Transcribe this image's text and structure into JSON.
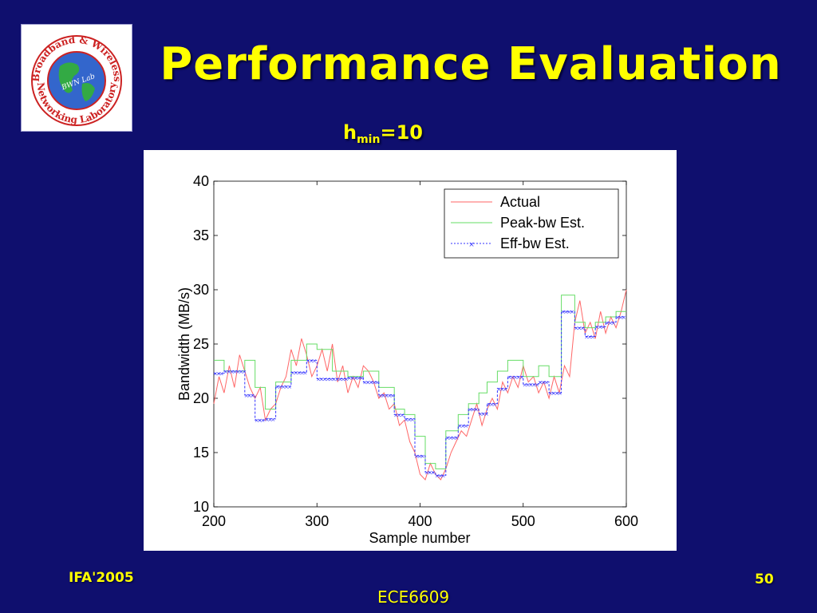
{
  "slide": {
    "title": "Performance Evaluation",
    "subtitle_main": "h",
    "subtitle_sub": "min",
    "subtitle_rest": "=10",
    "footer_left": "IFA'2005",
    "footer_center": "ECE6609",
    "footer_right": "50"
  },
  "logo": {
    "ring_text_top": "Broadband & Wireless",
    "ring_text_bottom": "Networking Laboratory",
    "center_text": "BWN Lab"
  },
  "colors": {
    "background": "#0f0f6e",
    "title": "#ffff00",
    "actual": "#ff6666",
    "peak": "#66dd66",
    "eff": "#3333ff"
  },
  "chart_data": {
    "type": "line",
    "xlabel": "Sample number",
    "ylabel": "Bandwidth (MB/s)",
    "xlim": [
      200,
      600
    ],
    "ylim": [
      10,
      40
    ],
    "xticks": [
      200,
      300,
      400,
      500,
      600
    ],
    "yticks": [
      10,
      15,
      20,
      25,
      30,
      35,
      40
    ],
    "legend_position": "top-right",
    "series": [
      {
        "name": "Actual",
        "color": "#ff6666",
        "x": [
          200,
          205,
          210,
          215,
          220,
          225,
          230,
          235,
          240,
          245,
          250,
          255,
          260,
          265,
          270,
          275,
          280,
          285,
          290,
          295,
          300,
          305,
          310,
          315,
          320,
          325,
          330,
          335,
          340,
          345,
          350,
          355,
          360,
          365,
          370,
          375,
          380,
          385,
          390,
          395,
          400,
          405,
          410,
          415,
          420,
          425,
          430,
          435,
          440,
          445,
          450,
          455,
          460,
          465,
          470,
          475,
          480,
          485,
          490,
          495,
          500,
          505,
          510,
          515,
          520,
          525,
          530,
          535,
          540,
          545,
          550,
          555,
          560,
          565,
          570,
          575,
          580,
          585,
          590,
          595,
          600
        ],
        "y": [
          19.5,
          22,
          20.5,
          23,
          21,
          24,
          22.5,
          21,
          20,
          21,
          18,
          19,
          19.5,
          21,
          22,
          24.5,
          23,
          25.5,
          24,
          22,
          23,
          24.5,
          22.5,
          25,
          21.5,
          23,
          20.5,
          22,
          21,
          23,
          22.5,
          21.5,
          20,
          20.5,
          19,
          19.5,
          17.5,
          18,
          16,
          15,
          13,
          12.5,
          14,
          13,
          12.5,
          13.5,
          15,
          16,
          17,
          16.5,
          18,
          19.5,
          17.5,
          19,
          20,
          19,
          21.5,
          20.5,
          22,
          21,
          23,
          21.5,
          22,
          20.5,
          21.5,
          20,
          22,
          20.5,
          23,
          22,
          27,
          29,
          26,
          27,
          25.5,
          28,
          26,
          27.5,
          26.5,
          28,
          30
        ]
      },
      {
        "name": "Peak-bw Est.",
        "color": "#66dd66",
        "x": [
          200,
          210,
          210,
          230,
          230,
          240,
          240,
          250,
          250,
          260,
          260,
          275,
          275,
          290,
          290,
          300,
          300,
          315,
          315,
          330,
          330,
          345,
          345,
          360,
          360,
          375,
          375,
          385,
          385,
          395,
          395,
          405,
          405,
          415,
          415,
          425,
          425,
          437,
          437,
          447,
          447,
          457,
          457,
          465,
          465,
          475,
          475,
          485,
          485,
          500,
          500,
          515,
          515,
          525,
          525,
          537,
          537,
          550,
          550,
          560,
          560,
          570,
          570,
          580,
          580,
          590,
          590,
          600
        ],
        "y": [
          23.5,
          23.5,
          22.5,
          22.5,
          23.5,
          23.5,
          21,
          21,
          19,
          19,
          21.5,
          21.5,
          23.5,
          23.5,
          25,
          25,
          24.5,
          24.5,
          22.5,
          22.5,
          22,
          22,
          22.5,
          22.5,
          21,
          21,
          19,
          19,
          18.5,
          18.5,
          16.5,
          16.5,
          14,
          14,
          13.5,
          13.5,
          17,
          17,
          18.5,
          18.5,
          19.5,
          19.5,
          20.5,
          20.5,
          21.5,
          21.5,
          22.5,
          22.5,
          23.5,
          23.5,
          22,
          22,
          23,
          23,
          22,
          22,
          29.5,
          29.5,
          27,
          27,
          26.5,
          26.5,
          27,
          27,
          27.5,
          27.5,
          28,
          28
        ]
      },
      {
        "name": "Eff-bw Est.",
        "color": "#3333ff",
        "x": [
          200,
          210,
          210,
          230,
          230,
          240,
          240,
          250,
          250,
          260,
          260,
          275,
          275,
          290,
          290,
          300,
          300,
          315,
          315,
          330,
          330,
          345,
          345,
          360,
          360,
          375,
          375,
          385,
          385,
          395,
          395,
          405,
          405,
          415,
          415,
          425,
          425,
          437,
          437,
          447,
          447,
          457,
          457,
          465,
          465,
          475,
          475,
          485,
          485,
          500,
          500,
          515,
          515,
          525,
          525,
          537,
          537,
          550,
          550,
          560,
          560,
          570,
          570,
          580,
          580,
          590,
          590,
          600
        ],
        "y": [
          22.3,
          22.3,
          22.5,
          22.5,
          20.3,
          20.3,
          18,
          18,
          18.1,
          18.1,
          21.1,
          21.1,
          22.4,
          22.4,
          23.5,
          23.5,
          21.8,
          21.8,
          21.8,
          21.8,
          21.9,
          21.9,
          21.5,
          21.5,
          20.3,
          20.3,
          18.5,
          18.5,
          18.1,
          18.1,
          14.7,
          14.7,
          13.2,
          13.2,
          12.9,
          12.9,
          16.4,
          16.4,
          17.5,
          17.5,
          19,
          19,
          18.6,
          18.6,
          19.5,
          19.5,
          20.9,
          20.9,
          22,
          22,
          21.3,
          21.3,
          21.5,
          21.5,
          20.5,
          20.5,
          28,
          28,
          26.5,
          26.5,
          25.7,
          25.7,
          26.6,
          26.6,
          27,
          27,
          27.5,
          27.5
        ]
      }
    ]
  }
}
